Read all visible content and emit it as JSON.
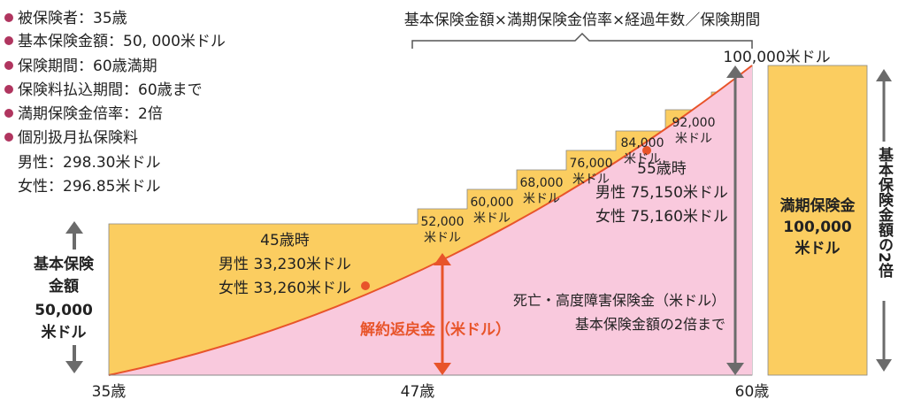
{
  "specs": [
    "被保険者：35歳",
    "基本保険金額：50, 000米ドル",
    "保険期間：60歳満期",
    "保険料払込期間：60歳まで",
    "満期保険金倍率：2倍",
    "個別扱月払保険料"
  ],
  "premiums": [
    "男性：298.30米ドル",
    "女性：296.85米ドル"
  ],
  "formula": "基本保険金額×満期保険金倍率×経過年数／保険期間",
  "top_amount": "100,000米ドル",
  "steps": [
    {
      "amount": "52,000",
      "unit": "米ドル"
    },
    {
      "amount": "60,000",
      "unit": "米ドル"
    },
    {
      "amount": "68,000",
      "unit": "米ドル"
    },
    {
      "amount": "76,000",
      "unit": "米ドル"
    },
    {
      "amount": "84,000",
      "unit": "米ドル"
    },
    {
      "amount": "92,000",
      "unit": "米ドル"
    }
  ],
  "point45": {
    "title": "45歳時",
    "male": "男性 33,230米ドル",
    "female": "女性 33,260米ドル"
  },
  "point55": {
    "title": "55歳時",
    "male": "男性 75,150米ドル",
    "female": "女性 75,160米ドル"
  },
  "base_amount": {
    "line1": "基本保険",
    "line2": "金額",
    "line3": "50,000",
    "line4": "米ドル"
  },
  "surrender_label": "解約返戻金（米ドル）",
  "death_label": {
    "line1": "死亡・高度障害保険金（米ドル）",
    "line2": "基本保険金額の2倍まで"
  },
  "maturity": {
    "line1": "満期保険金",
    "line2": "100,000",
    "line3": "米ドル"
  },
  "side_label": "基本保険金額の2倍",
  "x_ticks": [
    "35歳",
    "47歳",
    "60歳"
  ],
  "colors": {
    "gold": "#fbcd60",
    "pink": "#f9c9dd",
    "curve": "#e8542a",
    "arrow": "#6b6b6b",
    "bullet": "#b0355f",
    "bracket": "#555555"
  }
}
